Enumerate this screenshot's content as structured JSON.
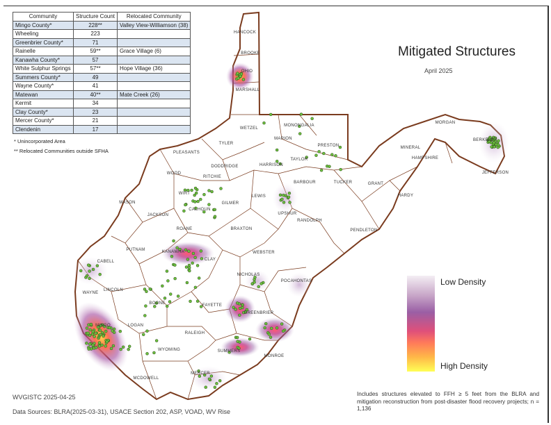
{
  "title": "Mitigated Structures",
  "subtitle": "April 2025",
  "table": {
    "headers": [
      "Community",
      "Structure Count",
      "Relocated Community"
    ],
    "rows": [
      [
        "Mingo County*",
        "228**",
        "Valley View-Williamson (38)"
      ],
      [
        "Wheeling",
        "223",
        ""
      ],
      [
        "Greenbrier County*",
        "71",
        ""
      ],
      [
        "Rainelle",
        "59**",
        "Grace Village (6)"
      ],
      [
        "Kanawha County*",
        "57",
        ""
      ],
      [
        "White Sulphur Springs",
        "57**",
        "Hope Village (36)"
      ],
      [
        "Summers County*",
        "49",
        ""
      ],
      [
        "Wayne County*",
        "41",
        ""
      ],
      [
        "Matewan",
        "40**",
        "Mate Creek (26)"
      ],
      [
        "Kermit",
        "34",
        ""
      ],
      [
        "Clay County*",
        "23",
        ""
      ],
      [
        "Mercer County*",
        "21",
        ""
      ],
      [
        "Clendenin",
        "17",
        ""
      ]
    ],
    "note1": "* Unincorporated Area",
    "note2": "** Relocated Communities outside SFHA"
  },
  "counties": [
    "HANCOCK",
    "BROOKE",
    "OHIO",
    "MARSHALL",
    "WETZEL",
    "MONONGALIA",
    "MARION",
    "PRESTON",
    "TYLER",
    "PLEASANTS",
    "DODDRIDGE",
    "HARRISON",
    "TAYLOR",
    "MORGAN",
    "BERKELEY",
    "JEFFERSON",
    "MINERAL",
    "HAMPSHIRE",
    "GRANT",
    "HARDY",
    "TUCKER",
    "BARBOUR",
    "WOOD",
    "RITCHIE",
    "WIRT",
    "LEWIS",
    "GILMER",
    "UPSHUR",
    "RANDOLPH",
    "CALHOUN",
    "JACKSON",
    "ROANE",
    "MASON",
    "BRAXTON",
    "PENDLETON",
    "PUTNAM",
    "CLAY",
    "WEBSTER",
    "CABELL",
    "KANAWHA",
    "POCAHONTAS",
    "NICHOLAS",
    "WAYNE",
    "LINCOLN",
    "BOONE",
    "FAYETTE",
    "GREENBRIER",
    "MINGO",
    "LOGAN",
    "RALEIGH",
    "SUMMERS",
    "MONROE",
    "WYOMING",
    "MERCER",
    "MCDOWELL"
  ],
  "legend": {
    "low": "Low Density",
    "high": "High Density"
  },
  "footer": {
    "credit": "WVGISTC 2025-04-25",
    "sources": "Data Sources: BLRA(2025-03-31), USACE Section 202, ASP, VOAD, WV Rise",
    "note": "Includes structures elevated to FFH ≥ 5 feet from the BLRA and mitigation reconstruction from post-disaster flood recovery projects; n = 1,136"
  },
  "colors": {
    "boundary": "#7a3b1e",
    "point": "#6cbf3f",
    "table_alt": "#dbe5f1"
  }
}
